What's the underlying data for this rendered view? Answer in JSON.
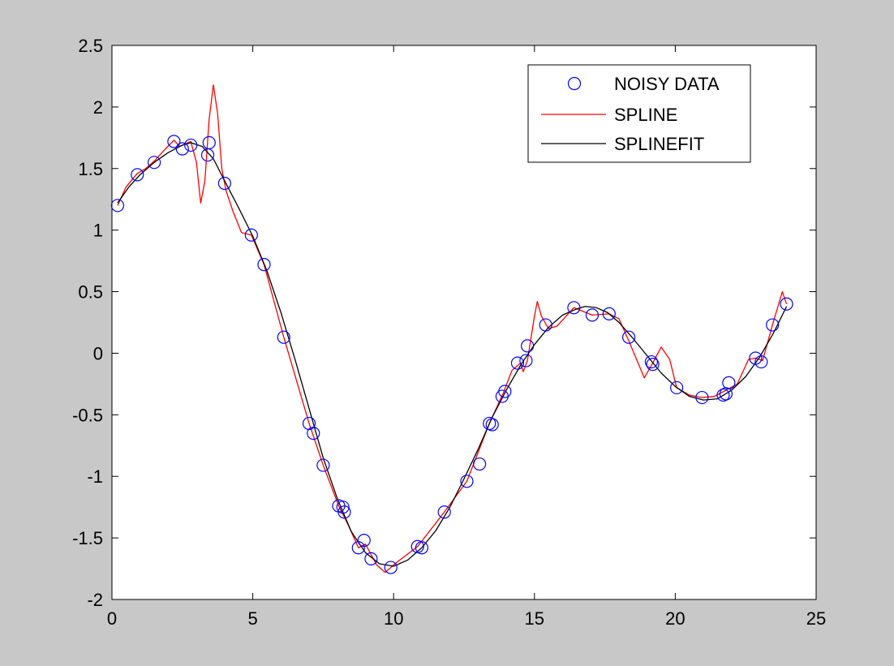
{
  "colors": {
    "figure_bg": "#c8c8c8",
    "axes_bg": "#ffffff",
    "noisy": "#0000ff",
    "spline": "#ff0000",
    "splinefit": "#000000"
  },
  "chart_data": {
    "type": "line",
    "title": "",
    "xlabel": "",
    "ylabel": "",
    "xlim": [
      0,
      25
    ],
    "ylim": [
      -2,
      2.5
    ],
    "grid": false,
    "legend_placement": "top-right",
    "x_ticks": [
      "0",
      "5",
      "10",
      "15",
      "20",
      "25"
    ],
    "y_ticks": [
      "-2",
      "-1.5",
      "-1",
      "-0.5",
      "0",
      "0.5",
      "1",
      "1.5",
      "2",
      "2.5"
    ],
    "series": [
      {
        "name": "NOISY DATA",
        "style": "circle-markers",
        "color": "#0000ff",
        "x": [
          0.2,
          0.9,
          1.5,
          2.2,
          2.5,
          2.8,
          3.4,
          3.45,
          4.0,
          4.95,
          5.4,
          6.1,
          7.0,
          7.15,
          7.5,
          8.05,
          8.2,
          8.25,
          8.75,
          8.95,
          9.2,
          9.9,
          10.85,
          11.0,
          11.8,
          12.6,
          13.05,
          13.4,
          13.5,
          13.85,
          13.95,
          14.4,
          14.7,
          14.75,
          15.4,
          16.4,
          17.05,
          17.65,
          18.35,
          19.15,
          19.2,
          20.05,
          20.95,
          21.7,
          21.8,
          21.9,
          22.85,
          23.05,
          23.45,
          23.95
        ],
        "y": [
          1.2,
          1.45,
          1.55,
          1.72,
          1.66,
          1.69,
          1.61,
          1.71,
          1.38,
          0.96,
          0.72,
          0.13,
          -0.57,
          -0.65,
          -0.91,
          -1.24,
          -1.25,
          -1.29,
          -1.58,
          -1.52,
          -1.67,
          -1.74,
          -1.57,
          -1.58,
          -1.29,
          -1.04,
          -0.9,
          -0.57,
          -0.58,
          -0.35,
          -0.31,
          -0.08,
          -0.06,
          0.06,
          0.23,
          0.37,
          0.31,
          0.32,
          0.13,
          -0.07,
          -0.09,
          -0.28,
          -0.36,
          -0.34,
          -0.33,
          -0.24,
          -0.04,
          -0.07,
          0.23,
          0.4
        ]
      },
      {
        "name": "SPLINE",
        "style": "line",
        "color": "#ff0000",
        "x": [
          0.2,
          0.5,
          0.9,
          1.2,
          1.5,
          1.9,
          2.2,
          2.4,
          2.6,
          2.8,
          3.0,
          3.15,
          3.3,
          3.45,
          3.6,
          3.75,
          3.9,
          4.05,
          4.3,
          4.6,
          4.95,
          5.4,
          6.1,
          7.0,
          7.5,
          8.05,
          8.4,
          8.75,
          9.0,
          9.4,
          9.7,
          10.1,
          10.85,
          11.8,
          12.6,
          13.4,
          13.9,
          14.2,
          14.5,
          14.6,
          14.75,
          15.0,
          15.1,
          15.25,
          15.5,
          15.8,
          16.4,
          17.05,
          17.65,
          18.0,
          18.35,
          18.9,
          19.2,
          19.5,
          19.8,
          20.05,
          20.5,
          20.95,
          21.4,
          21.8,
          22.2,
          22.6,
          22.85,
          23.1,
          23.45,
          23.8,
          23.95
        ],
        "y": [
          1.2,
          1.35,
          1.46,
          1.5,
          1.56,
          1.66,
          1.73,
          1.68,
          1.7,
          1.72,
          1.55,
          1.22,
          1.4,
          1.9,
          2.18,
          1.95,
          1.5,
          1.32,
          1.15,
          0.98,
          0.96,
          0.72,
          0.13,
          -0.57,
          -0.91,
          -1.24,
          -1.4,
          -1.58,
          -1.55,
          -1.72,
          -1.78,
          -1.7,
          -1.57,
          -1.29,
          -1.04,
          -0.57,
          -0.32,
          -0.14,
          -0.08,
          -0.15,
          -0.06,
          0.3,
          0.42,
          0.3,
          0.2,
          0.22,
          0.37,
          0.31,
          0.32,
          0.28,
          0.1,
          -0.2,
          -0.08,
          0.05,
          -0.05,
          -0.28,
          -0.34,
          -0.36,
          -0.35,
          -0.3,
          -0.25,
          -0.05,
          -0.04,
          -0.06,
          0.23,
          0.5,
          0.4
        ]
      },
      {
        "name": "SPLINEFIT",
        "style": "line",
        "color": "#000000",
        "x": [
          0.2,
          0.6,
          1.0,
          1.5,
          2.0,
          2.5,
          2.8,
          3.2,
          3.6,
          4.0,
          4.5,
          5.0,
          5.5,
          6.0,
          6.5,
          7.0,
          7.5,
          8.0,
          8.5,
          9.0,
          9.5,
          10.0,
          10.5,
          11.0,
          11.5,
          12.0,
          12.5,
          13.0,
          13.5,
          14.0,
          14.5,
          15.0,
          15.5,
          16.0,
          16.5,
          16.8,
          17.2,
          17.6,
          18.0,
          18.5,
          19.0,
          19.5,
          20.0,
          20.5,
          21.0,
          21.5,
          22.0,
          22.5,
          23.0,
          23.5,
          23.95
        ],
        "y": [
          1.22,
          1.35,
          1.45,
          1.55,
          1.63,
          1.69,
          1.71,
          1.68,
          1.58,
          1.4,
          1.18,
          0.95,
          0.67,
          0.33,
          -0.05,
          -0.45,
          -0.85,
          -1.18,
          -1.45,
          -1.62,
          -1.71,
          -1.73,
          -1.68,
          -1.58,
          -1.44,
          -1.25,
          -1.02,
          -0.78,
          -0.52,
          -0.3,
          -0.1,
          0.07,
          0.21,
          0.31,
          0.36,
          0.38,
          0.37,
          0.33,
          0.25,
          0.12,
          -0.02,
          -0.16,
          -0.27,
          -0.35,
          -0.38,
          -0.37,
          -0.3,
          -0.19,
          -0.03,
          0.17,
          0.38
        ]
      }
    ]
  }
}
